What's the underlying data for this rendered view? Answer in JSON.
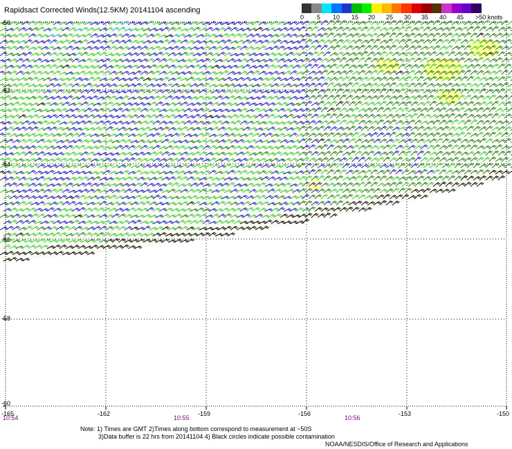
{
  "title": "Rapidsact Corrected Winds(12.5KM) 20141104 ascending",
  "colorbar": {
    "colors": [
      "#333333",
      "#888888",
      "#00e5ff",
      "#0077ff",
      "#2233cc",
      "#00bb00",
      "#00ee00",
      "#ffee00",
      "#ffbb00",
      "#ff7700",
      "#ff3300",
      "#dd0000",
      "#990000",
      "#553300",
      "#cc33cc",
      "#9900cc",
      "#6600cc",
      "#330066"
    ],
    "labels": [
      "0",
      "5",
      "10",
      "15",
      "20",
      "25",
      "30",
      "35",
      "40",
      "45",
      ">50 knots"
    ]
  },
  "axes": {
    "lat_labels": [
      "-50",
      "-52",
      "-54",
      "-56",
      "-58",
      "-60"
    ],
    "lon_labels": [
      "-165",
      "-162",
      "-159",
      "-156",
      "-153",
      "-150"
    ]
  },
  "times": [
    "10:54",
    "10:55",
    "10:56"
  ],
  "notes": [
    "Note: 1) Times are GMT 2)Times along bottom correspond to measurement at ~50S",
    "3)Data buffer is 22 hrs from 20141104 4) Black circles indicate possible contamination"
  ],
  "credit": "NOAA/NESDIS/Office of Research and Applications",
  "barb_colors": {
    "blue": "#1a1acc",
    "light_green": "#33cc33",
    "dark_green": "#1f7a1f",
    "black": "#000000",
    "cyan": "#22aaee",
    "yellow_patch": "#ffff99"
  }
}
